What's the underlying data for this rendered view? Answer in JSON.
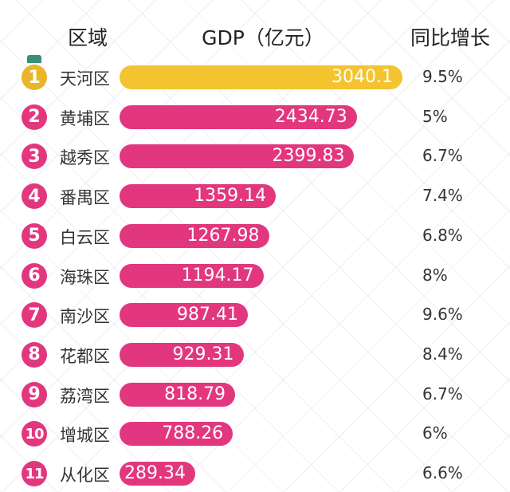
{
  "chart_data": {
    "type": "bar",
    "title": "",
    "headers": {
      "region": "区域",
      "gdp": "GDP（亿元）",
      "growth": "同比增长"
    },
    "categories": [
      "天河区",
      "黄埔区",
      "越秀区",
      "番禺区",
      "白云区",
      "海珠区",
      "南沙区",
      "花都区",
      "荔湾区",
      "增城区",
      "从化区"
    ],
    "ranks": [
      "1",
      "2",
      "3",
      "4",
      "5",
      "6",
      "7",
      "8",
      "9",
      "10",
      "11"
    ],
    "values": [
      3040.1,
      2434.73,
      2399.83,
      1359.14,
      1267.98,
      1194.17,
      987.41,
      929.31,
      818.79,
      788.26,
      289.34
    ],
    "value_labels": [
      "3040.1",
      "2434.73",
      "2399.83",
      "1359.14",
      "1267.98",
      "1194.17",
      "987.41",
      "929.31",
      "818.79",
      "788.26",
      "289.34"
    ],
    "growth": [
      "9.5%",
      "5%",
      "6.7%",
      "7.4%",
      "6.8%",
      "8%",
      "9.6%",
      "8.4%",
      "6.7%",
      "6%",
      "6.6%"
    ],
    "colors": {
      "first": "#f3c42f",
      "rest": "#e2377e",
      "medal": "#e9b52a"
    }
  }
}
